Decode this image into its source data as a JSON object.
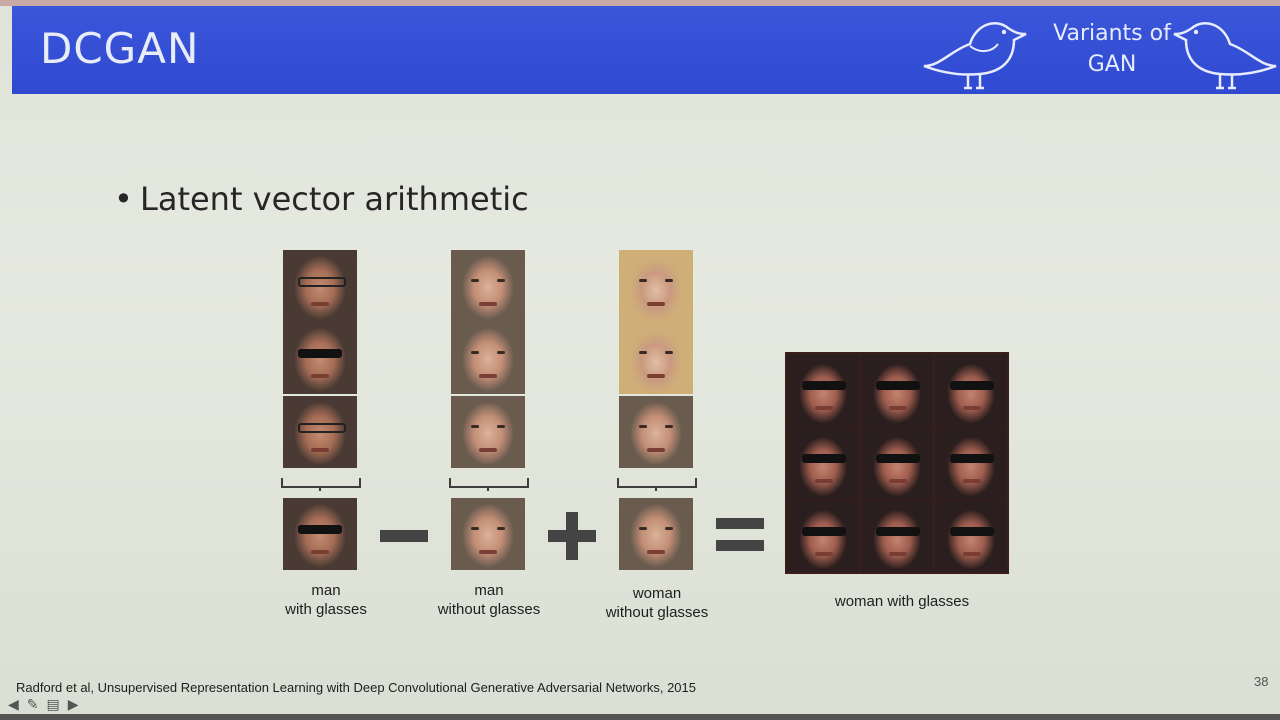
{
  "slide": {
    "title": "DCGAN",
    "header_badge": {
      "line1": "Variants of",
      "line2": "GAN"
    },
    "bullet": "Latent vector arithmetic",
    "operands": [
      {
        "label_line1": "man",
        "label_line2": "with glasses"
      },
      {
        "label_line1": "man",
        "label_line2": "without glasses"
      },
      {
        "label_line1": "woman",
        "label_line2": "without glasses"
      }
    ],
    "result_label": "woman with glasses",
    "operators": [
      "minus",
      "plus",
      "equals"
    ],
    "reference": "Radford et al, Unsupervised Representation Learning with Deep Convolutional Generative Adversarial Networks, 2015",
    "page_number": "38"
  },
  "icons": {
    "header": [
      "bird-icon",
      "bird-icon"
    ],
    "nav": [
      "arrow-left-icon",
      "pen-icon",
      "slide-list-icon",
      "arrow-right-icon"
    ]
  },
  "colors": {
    "header_bg": "#3150d4",
    "slide_bg": "#e2e6db",
    "operator": "#444444"
  }
}
